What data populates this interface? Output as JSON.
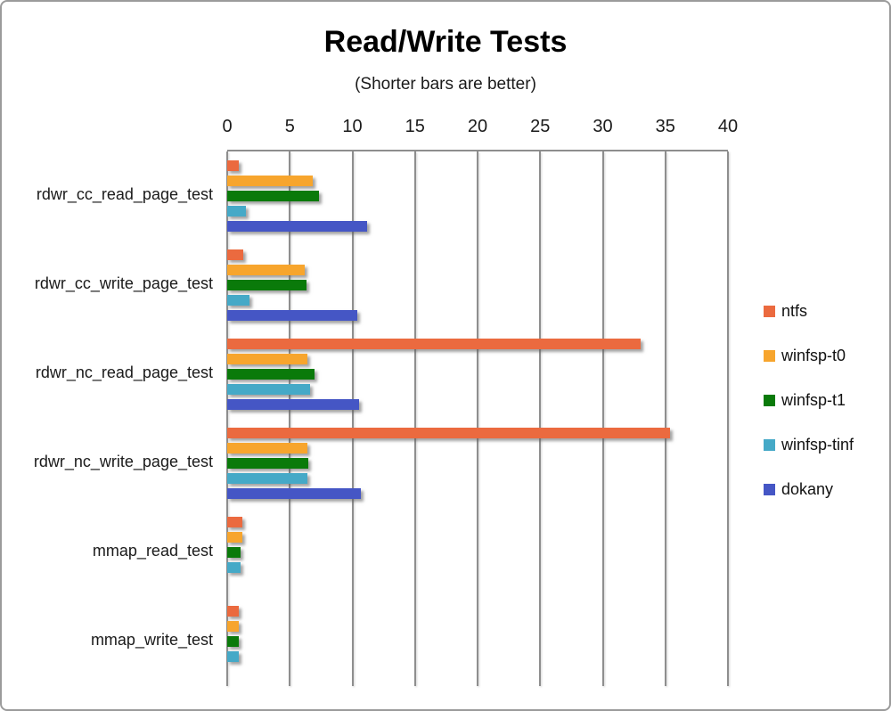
{
  "title": "Read/Write Tests",
  "subtitle": "(Shorter bars are better)",
  "chart_data": {
    "type": "bar",
    "orientation": "horizontal",
    "title": "Read/Write Tests",
    "subtitle": "(Shorter bars are better)",
    "xlabel": "",
    "ylabel": "",
    "xlim": [
      0,
      40
    ],
    "x_ticks": [
      0,
      5,
      10,
      15,
      20,
      25,
      30,
      35,
      40
    ],
    "grid": "vertical",
    "legend_position": "right",
    "categories": [
      "rdwr_cc_read_page_test",
      "rdwr_cc_write_page_test",
      "rdwr_nc_read_page_test",
      "rdwr_nc_write_page_test",
      "mmap_read_test",
      "mmap_write_test"
    ],
    "series": [
      {
        "name": "ntfs",
        "color": "#EB6A3F",
        "values": [
          0.9,
          1.3,
          33.0,
          35.4,
          1.2,
          0.9
        ]
      },
      {
        "name": "winfsp-t0",
        "color": "#F7A52D",
        "values": [
          6.8,
          6.2,
          6.4,
          6.4,
          1.2,
          0.9
        ]
      },
      {
        "name": "winfsp-t1",
        "color": "#0A7A0A",
        "values": [
          7.3,
          6.3,
          7.0,
          6.5,
          1.1,
          0.9
        ]
      },
      {
        "name": "winfsp-tinf",
        "color": "#45A9C7",
        "values": [
          1.5,
          1.8,
          6.6,
          6.4,
          1.1,
          0.9
        ]
      },
      {
        "name": "dokany",
        "color": "#4556C5",
        "values": [
          11.2,
          10.4,
          10.5,
          10.7,
          null,
          null
        ]
      }
    ]
  },
  "colors": {
    "grid": "#8e8e8e",
    "border": "#9b9b9b",
    "text": "#1a1a1a"
  }
}
